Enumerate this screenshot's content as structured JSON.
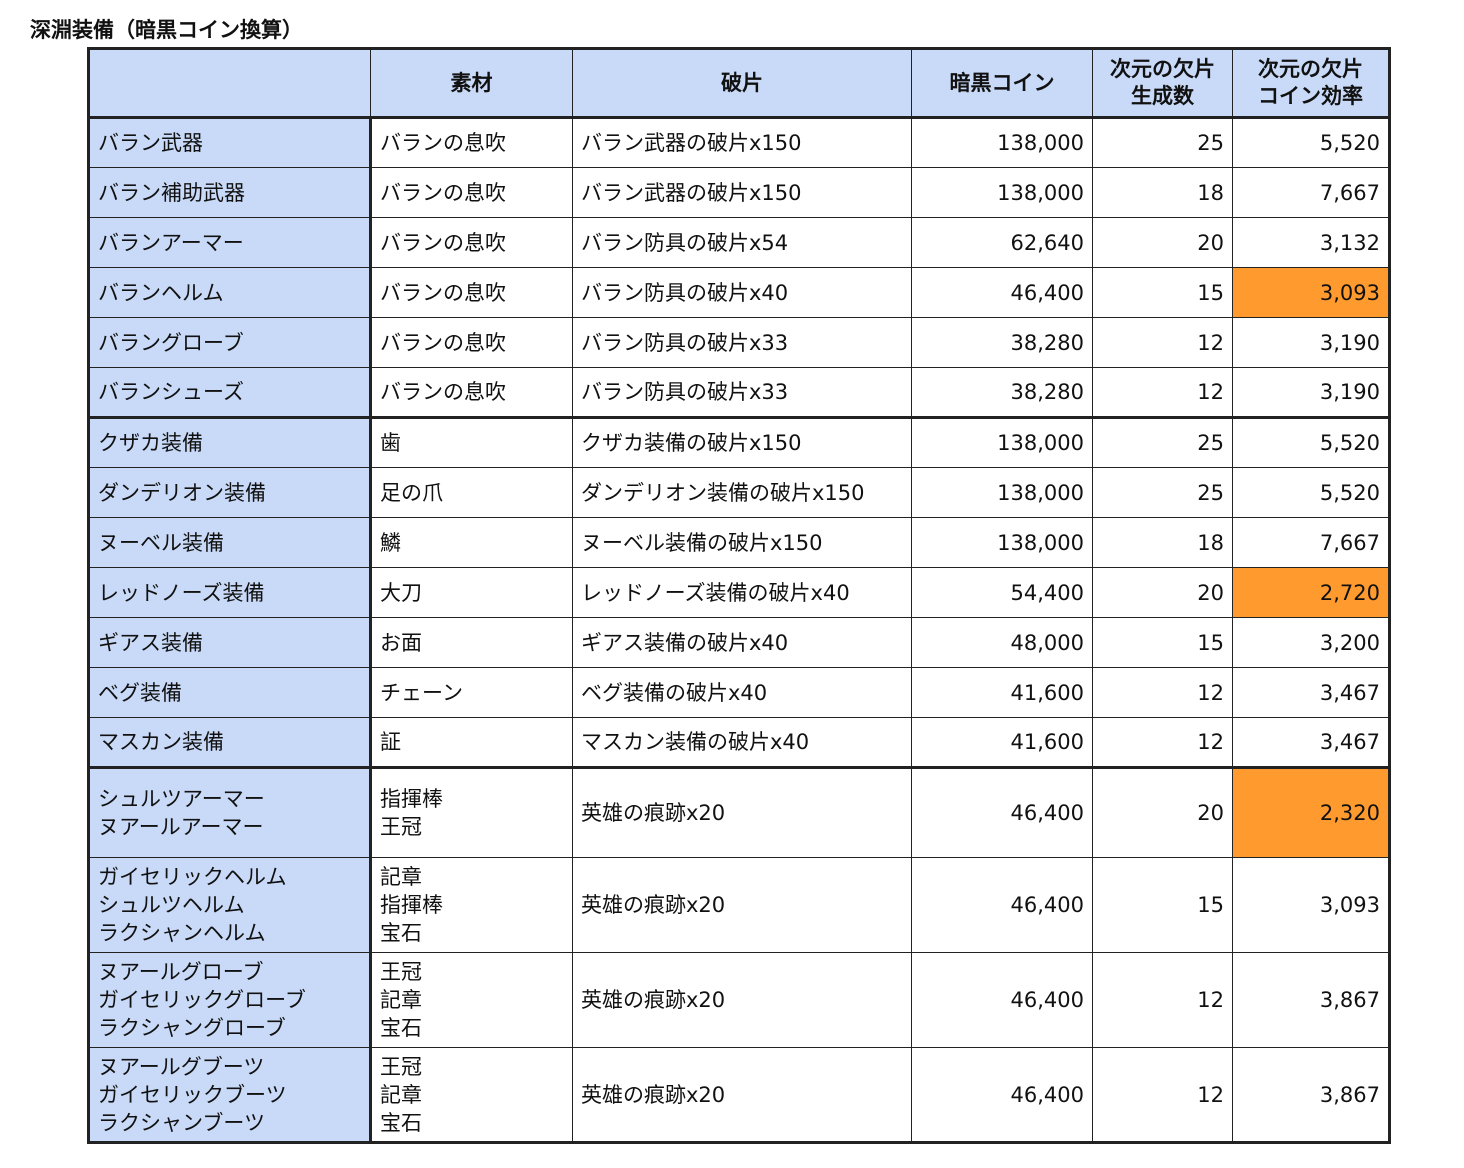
{
  "title": "深淵装備（暗黒コイン換算）",
  "colors": {
    "header_bg": "#c9daf8",
    "highlight": "#ff9a2e"
  },
  "headers": {
    "name": "",
    "material": "素材",
    "fragment": "破片",
    "coin": "暗黒コイン",
    "gen_line1": "次元の欠片",
    "gen_line2": "生成数",
    "eff_line1": "次元の欠片",
    "eff_line2": "コイン効率"
  },
  "rows": [
    {
      "name": "バラン武器",
      "material": "バランの息吹",
      "fragment": "バラン武器の破片x150",
      "coin": "138,000",
      "gen": "25",
      "eff": "5,520"
    },
    {
      "name": "バラン補助武器",
      "material": "バランの息吹",
      "fragment": "バラン武器の破片x150",
      "coin": "138,000",
      "gen": "18",
      "eff": "7,667"
    },
    {
      "name": "バランアーマー",
      "material": "バランの息吹",
      "fragment": "バラン防具の破片x54",
      "coin": "62,640",
      "gen": "20",
      "eff": "3,132"
    },
    {
      "name": "バランヘルム",
      "material": "バランの息吹",
      "fragment": "バラン防具の破片x40",
      "coin": "46,400",
      "gen": "15",
      "eff": "3,093",
      "highlight": true
    },
    {
      "name": "バラングローブ",
      "material": "バランの息吹",
      "fragment": "バラン防具の破片x33",
      "coin": "38,280",
      "gen": "12",
      "eff": "3,190"
    },
    {
      "name": "バランシューズ",
      "material": "バランの息吹",
      "fragment": "バラン防具の破片x33",
      "coin": "38,280",
      "gen": "12",
      "eff": "3,190"
    },
    {
      "name": "クザカ装備",
      "material": "歯",
      "fragment": "クザカ装備の破片x150",
      "coin": "138,000",
      "gen": "25",
      "eff": "5,520"
    },
    {
      "name": "ダンデリオン装備",
      "material": "足の爪",
      "fragment": "ダンデリオン装備の破片x150",
      "coin": "138,000",
      "gen": "25",
      "eff": "5,520"
    },
    {
      "name": "ヌーベル装備",
      "material": "鱗",
      "fragment": "ヌーベル装備の破片x150",
      "coin": "138,000",
      "gen": "18",
      "eff": "7,667"
    },
    {
      "name": "レッドノーズ装備",
      "material": "大刀",
      "fragment": "レッドノーズ装備の破片x40",
      "coin": "54,400",
      "gen": "20",
      "eff": "2,720",
      "highlight": true
    },
    {
      "name": "ギアス装備",
      "material": "お面",
      "fragment": "ギアス装備の破片x40",
      "coin": "48,000",
      "gen": "15",
      "eff": "3,200"
    },
    {
      "name": "ベグ装備",
      "material": "チェーン",
      "fragment": "ベグ装備の破片x40",
      "coin": "41,600",
      "gen": "12",
      "eff": "3,467"
    },
    {
      "name": "マスカン装備",
      "material": "証",
      "fragment": "マスカン装備の破片x40",
      "coin": "41,600",
      "gen": "12",
      "eff": "3,467"
    }
  ],
  "multi_rows": [
    {
      "names": [
        "シュルツアーマー",
        "ヌアールアーマー"
      ],
      "materials": [
        "指揮棒",
        "王冠"
      ],
      "fragment": "英雄の痕跡x20",
      "coin": "46,400",
      "gen": "20",
      "eff": "2,320",
      "highlight": true
    },
    {
      "names": [
        "ガイセリックヘルム",
        "シュルツヘルム",
        "ラクシャンヘルム"
      ],
      "materials": [
        "記章",
        "指揮棒",
        "宝石"
      ],
      "fragment": "英雄の痕跡x20",
      "coin": "46,400",
      "gen": "15",
      "eff": "3,093"
    },
    {
      "names": [
        "ヌアールグローブ",
        "ガイセリックグローブ",
        "ラクシャングローブ"
      ],
      "materials": [
        "王冠",
        "記章",
        "宝石"
      ],
      "fragment": "英雄の痕跡x20",
      "coin": "46,400",
      "gen": "12",
      "eff": "3,867"
    },
    {
      "names": [
        "ヌアールグブーツ",
        "ガイセリックブーツ",
        "ラクシャンブーツ"
      ],
      "materials": [
        "王冠",
        "記章",
        "宝石"
      ],
      "fragment": "英雄の痕跡x20",
      "coin": "46,400",
      "gen": "12",
      "eff": "3,867"
    }
  ]
}
